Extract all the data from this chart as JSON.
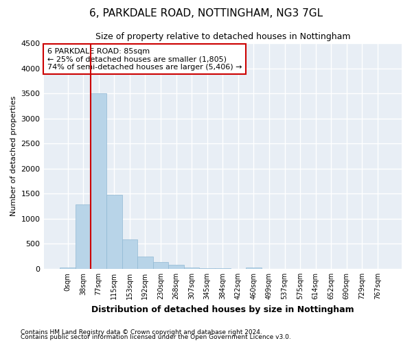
{
  "title": "6, PARKDALE ROAD, NOTTINGHAM, NG3 7GL",
  "subtitle": "Size of property relative to detached houses in Nottingham",
  "xlabel": "Distribution of detached houses by size in Nottingham",
  "ylabel": "Number of detached properties",
  "bar_color": "#b8d4e8",
  "bar_edge_color": "#90b8d4",
  "categories": [
    "0sqm",
    "38sqm",
    "77sqm",
    "115sqm",
    "153sqm",
    "192sqm",
    "230sqm",
    "268sqm",
    "307sqm",
    "345sqm",
    "384sqm",
    "422sqm",
    "460sqm",
    "499sqm",
    "537sqm",
    "575sqm",
    "614sqm",
    "652sqm",
    "690sqm",
    "729sqm",
    "767sqm"
  ],
  "values": [
    30,
    1280,
    3500,
    1470,
    580,
    240,
    140,
    80,
    30,
    10,
    5,
    0,
    20,
    0,
    0,
    0,
    0,
    0,
    0,
    0,
    0
  ],
  "ylim": [
    0,
    4500
  ],
  "yticks": [
    0,
    500,
    1000,
    1500,
    2000,
    2500,
    3000,
    3500,
    4000,
    4500
  ],
  "property_line_label": "6 PARKDALE ROAD: 85sqm",
  "annotation_line1": "← 25% of detached houses are smaller (1,805)",
  "annotation_line2": "74% of semi-detached houses are larger (5,406) →",
  "annotation_box_color": "#ffffff",
  "annotation_box_edge_color": "#cc0000",
  "red_line_color": "#cc0000",
  "footer_line1": "Contains HM Land Registry data © Crown copyright and database right 2024.",
  "footer_line2": "Contains public sector information licensed under the Open Government Licence v3.0.",
  "plot_background": "#e8eef5",
  "grid_color": "#ffffff",
  "red_line_bar_index": 2
}
